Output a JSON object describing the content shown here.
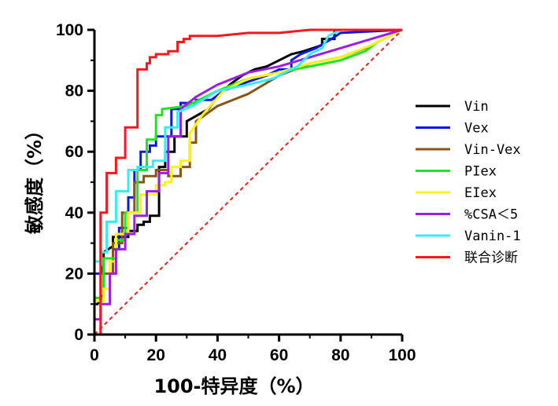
{
  "chart_data": {
    "type": "line",
    "xlabel": "100-特异度（%）",
    "ylabel": "敏感度（%）",
    "xlim": [
      0,
      100
    ],
    "ylim": [
      0,
      100
    ],
    "xticks": [
      "0",
      "20",
      "40",
      "60",
      "80",
      "100"
    ],
    "yticks": [
      "0",
      "20",
      "40",
      "60",
      "80",
      "100"
    ],
    "grid": false,
    "legend": "right",
    "reference_line": {
      "x": [
        0,
        100
      ],
      "y": [
        0,
        100
      ],
      "color": "#e8231d",
      "style": "dashed"
    },
    "series": [
      {
        "name": "Vin",
        "color": "#000000",
        "x": [
          0,
          1,
          3,
          3,
          6,
          6,
          11,
          11,
          14,
          14,
          16,
          16,
          18,
          18,
          21,
          21,
          23,
          23,
          26,
          26,
          30,
          30,
          37,
          40,
          44,
          48,
          52,
          56,
          60,
          64,
          68,
          74,
          74,
          78,
          78,
          100
        ],
        "y": [
          10,
          10,
          13,
          27,
          29,
          32,
          32,
          34,
          34,
          36,
          36,
          37,
          37,
          39,
          39,
          55,
          55,
          60,
          60,
          65,
          65,
          70,
          74,
          78,
          82,
          85,
          87,
          88,
          90,
          92,
          93,
          95,
          97,
          97,
          100,
          100
        ]
      },
      {
        "name": "Vex",
        "color": "#0b18e6",
        "x": [
          0,
          2,
          3,
          3,
          6,
          6,
          8,
          8,
          11,
          11,
          13,
          13,
          15,
          15,
          18,
          18,
          20,
          20,
          25,
          25,
          28,
          28,
          33,
          33,
          38,
          42,
          50,
          56,
          60,
          64,
          64,
          67,
          72,
          77,
          80,
          100
        ],
        "y": [
          20,
          20,
          23,
          25,
          25,
          28,
          28,
          35,
          35,
          45,
          45,
          54,
          54,
          60,
          60,
          62,
          62,
          65,
          65,
          74,
          74,
          76,
          76,
          77,
          77,
          80,
          83,
          85,
          87,
          87,
          90,
          92,
          94,
          97,
          99,
          100
        ]
      },
      {
        "name": "Vin-Vex",
        "color": "#8a5416",
        "x": [
          0,
          2,
          2,
          6,
          6,
          9,
          9,
          13,
          13,
          16,
          16,
          20,
          20,
          24,
          24,
          28,
          28,
          31,
          31,
          33,
          33,
          40,
          50,
          60,
          70,
          80,
          88,
          92,
          96,
          100
        ],
        "y": [
          12,
          12,
          20,
          20,
          30,
          30,
          40,
          40,
          50,
          50,
          52,
          52,
          54,
          54,
          52,
          52,
          55,
          55,
          63,
          63,
          70,
          75,
          79,
          85,
          89,
          91,
          94,
          96,
          98,
          100
        ]
      },
      {
        "name": "PIex",
        "color": "#1ee61e",
        "x": [
          0,
          3,
          3,
          7,
          7,
          10,
          10,
          14,
          14,
          17,
          17,
          20,
          20,
          22,
          22,
          30,
          40,
          50,
          60,
          70,
          80,
          88,
          92,
          96,
          100
        ],
        "y": [
          12,
          12,
          25,
          25,
          31,
          31,
          40,
          40,
          54,
          54,
          64,
          64,
          72,
          72,
          74,
          75,
          80,
          84,
          86,
          88,
          90,
          93,
          96,
          98,
          100
        ]
      },
      {
        "name": "EIex",
        "color": "#fbf21c",
        "x": [
          0,
          3,
          3,
          5,
          5,
          7,
          7,
          11,
          11,
          15,
          15,
          20,
          20,
          23,
          23,
          25,
          25,
          28,
          28,
          31,
          31,
          35,
          42,
          50,
          60,
          70,
          80,
          90,
          100
        ],
        "y": [
          11,
          11,
          15,
          15,
          24,
          24,
          33,
          33,
          40,
          40,
          46,
          46,
          49,
          49,
          50,
          50,
          55,
          55,
          57,
          57,
          66,
          72,
          80,
          84,
          86,
          89,
          91,
          95,
          100
        ]
      },
      {
        "name": "%CSA＜5",
        "color": "#9d1ee3",
        "x": [
          0,
          2,
          2,
          5,
          5,
          7,
          7,
          10,
          10,
          13,
          13,
          17,
          17,
          21,
          21,
          24,
          24,
          28,
          28,
          33,
          40,
          50,
          60,
          70,
          80,
          90,
          100
        ],
        "y": [
          5,
          5,
          10,
          10,
          20,
          20,
          28,
          28,
          33,
          33,
          39,
          39,
          47,
          47,
          53,
          53,
          65,
          65,
          74,
          78,
          82,
          86,
          88,
          91,
          94,
          97,
          100
        ]
      },
      {
        "name": "Vanin-1",
        "color": "#36ecf2",
        "x": [
          0,
          2,
          2,
          4,
          4,
          7,
          7,
          11,
          11,
          14,
          14,
          19,
          19,
          23,
          23,
          27,
          27,
          32,
          40,
          50,
          58,
          62,
          66,
          70,
          74,
          76,
          80,
          100
        ],
        "y": [
          24,
          24,
          27,
          27,
          37,
          37,
          47,
          47,
          54,
          54,
          55,
          55,
          57,
          57,
          68,
          68,
          73,
          75,
          80,
          82,
          84,
          86,
          88,
          92,
          94,
          98,
          100,
          100
        ]
      },
      {
        "name": "联合诊断",
        "color": "#f5181c",
        "x": [
          0,
          2,
          2,
          4,
          4,
          7,
          7,
          10,
          10,
          14,
          14,
          17,
          17,
          18,
          18,
          20,
          20,
          24,
          24,
          27,
          27,
          29,
          29,
          31,
          31,
          40,
          50,
          60,
          70,
          80,
          90,
          100
        ],
        "y": [
          0,
          0,
          40,
          40,
          53,
          53,
          58,
          58,
          68,
          68,
          87,
          87,
          89,
          89,
          91,
          91,
          92,
          92,
          93,
          93,
          96,
          96,
          97,
          97,
          98,
          98,
          99,
          99,
          100,
          100,
          100,
          100
        ]
      }
    ]
  }
}
